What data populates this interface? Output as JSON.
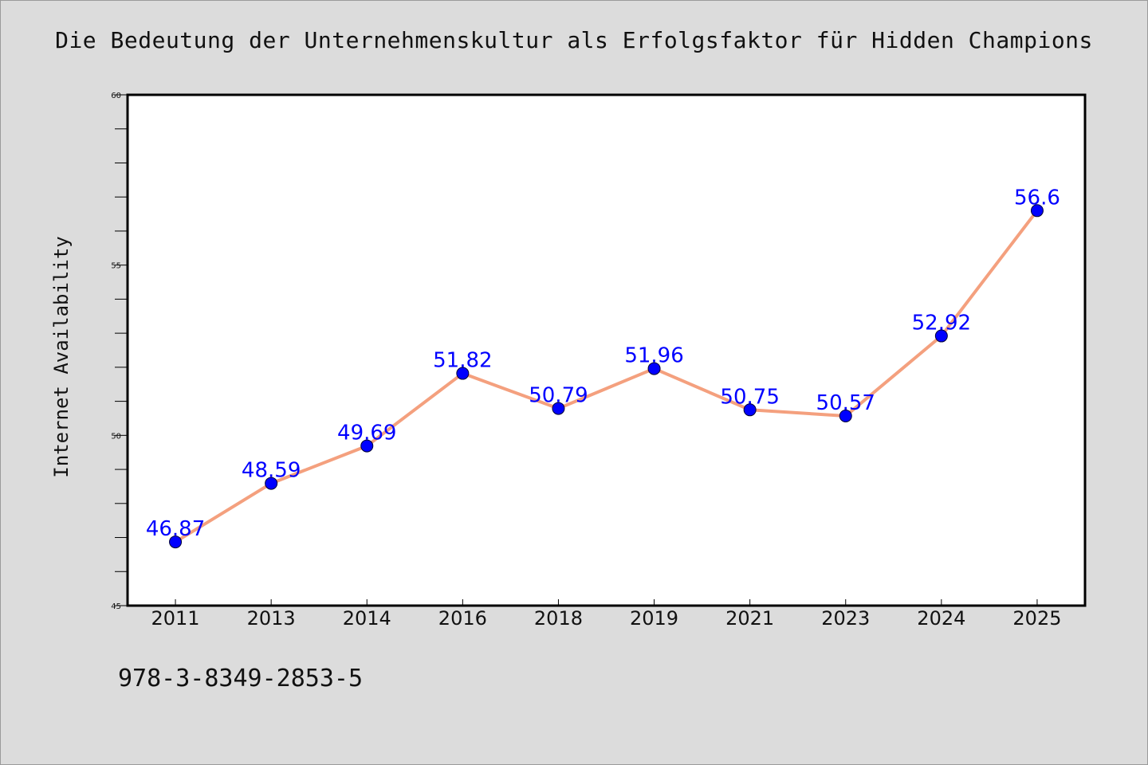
{
  "chart_data": {
    "type": "line",
    "title": "Die Bedeutung der Unternehmenskultur als Erfolgsfaktor für Hidden Champions",
    "xlabel": "",
    "ylabel": "Internet Availability",
    "categories": [
      "2011",
      "2013",
      "2014",
      "2016",
      "2018",
      "2019",
      "2021",
      "2023",
      "2024",
      "2025"
    ],
    "values": [
      46.87,
      48.59,
      49.69,
      51.82,
      50.79,
      51.96,
      50.75,
      50.57,
      52.92,
      56.6
    ],
    "data_labels": [
      "46.87",
      "48.59",
      "49.69",
      "51.82",
      "50.79",
      "51.96",
      "50.75",
      "50.57",
      "52.92",
      "56.6"
    ],
    "ylim": [
      45,
      60
    ],
    "y_ticks": [
      "45",
      "50",
      "55",
      "60"
    ],
    "grid": false,
    "line_color": "#f4a07e",
    "marker_color": "#0000ff",
    "label_color": "#0000ff"
  },
  "footer": {
    "isbn": "978-3-8349-2853-5"
  }
}
